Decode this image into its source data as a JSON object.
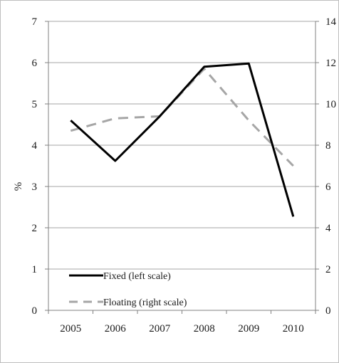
{
  "chart_data": {
    "type": "line",
    "categories": [
      "2005",
      "2006",
      "2007",
      "2008",
      "2009",
      "2010"
    ],
    "ylabel": "%",
    "y_left": {
      "min": 0,
      "max": 7,
      "ticks": [
        "0",
        "1",
        "2",
        "3",
        "4",
        "5",
        "6",
        "7"
      ]
    },
    "y_right": {
      "min": 0,
      "max": 14,
      "ticks": [
        "0",
        "2",
        "4",
        "6",
        "8",
        "10",
        "12",
        "14"
      ]
    },
    "grid": true,
    "legend_position": "bottom-left",
    "series": [
      {
        "name": "Fixed (left scale)",
        "axis": "left",
        "style": "solid",
        "color": "#000000",
        "values": [
          4.6,
          3.62,
          4.7,
          5.9,
          5.98,
          2.27
        ]
      },
      {
        "name": "Floating (right scale)",
        "axis": "right",
        "style": "dashed",
        "color": "#a6a6a6",
        "values": [
          8.7,
          9.3,
          9.4,
          11.7,
          9.2,
          7.0
        ]
      }
    ]
  }
}
